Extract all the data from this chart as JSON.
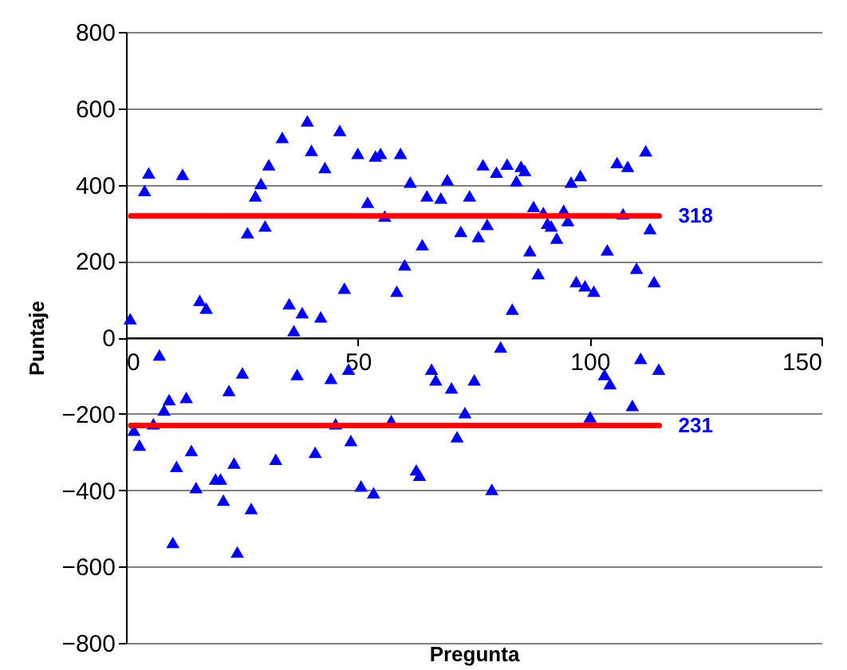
{
  "chart_data": {
    "type": "scatter",
    "xlabel": "Pregunta",
    "ylabel": "Puntaje",
    "xlim": [
      0,
      150
    ],
    "xticks": [
      0,
      50,
      100,
      150
    ],
    "ylim": [
      -800,
      800
    ],
    "yticks": [
      -800,
      -600,
      -400,
      -200,
      0,
      200,
      400,
      600,
      800
    ],
    "grid": "y",
    "annotations": [
      {
        "text": "318",
        "x": 115,
        "y": 318
      },
      {
        "text": "231",
        "x": 115,
        "y": -231
      }
    ],
    "series": [
      {
        "color": "#0000ff",
        "marker": "triangle",
        "x": [
          4.9,
          4.0,
          12.2,
          33.7,
          39.1,
          46.1,
          40.0,
          42.9,
          30.8,
          29.1,
          27.9,
          26.2,
          30.0,
          0.9,
          15.9,
          17.3,
          35.2,
          38.0,
          42.0,
          36.2,
          47.1,
          50.0,
          53.8,
          54.9,
          59.2,
          61.3,
          69.3,
          64.9,
          67.9,
          74.1,
          52.1,
          55.8,
          77.0,
          79.9,
          82.2,
          85.2,
          86.0,
          84.2,
          96.0,
          72.2,
          76.0,
          77.9,
          63.9,
          60.1,
          58.4,
          87.9,
          90.0,
          90.9,
          91.7,
          94.4,
          95.3,
          92.9,
          87.1,
          88.9,
          83.3,
          80.8,
          98.0,
          105.9,
          108.2,
          112.1,
          107.2,
          113.0,
          103.8,
          110.1,
          113.9,
          97.1,
          99.0,
          100.9,
          7.2,
          25.1,
          9.3,
          13.0,
          22.2,
          8.2,
          5.9,
          1.7,
          2.9,
          14.1,
          10.9,
          23.3,
          32.3,
          40.8,
          15.1,
          19.3,
          20.4,
          21.0,
          27.0,
          10.1,
          24.0,
          36.9,
          44.2,
          45.2,
          48.5,
          48.0,
          65.9,
          66.8,
          70.2,
          75.1,
          57.2,
          73.1,
          71.4,
          62.6,
          63.3,
          50.7,
          53.4,
          78.9,
          103.2,
          104.4,
          111.0,
          114.9,
          109.2,
          100.1
        ],
        "values": [
          431,
          385,
          427,
          524,
          567,
          542,
          490,
          445,
          452,
          403,
          371,
          274,
          292,
          49,
          97,
          77,
          88,
          65,
          54,
          18,
          129,
          482,
          475,
          482,
          482,
          407,
          413,
          371,
          365,
          371,
          354,
          318,
          452,
          433,
          454,
          448,
          437,
          410,
          407,
          278,
          264,
          296,
          243,
          190,
          121,
          343,
          327,
          299,
          292,
          333,
          306,
          260,
          227,
          167,
          74,
          -25,
          424,
          458,
          448,
          489,
          324,
          285,
          229,
          181,
          146,
          146,
          135,
          121,
          -46,
          -93,
          -163,
          -157,
          -139,
          -190,
          -226,
          -243,
          -282,
          -296,
          -338,
          -329,
          -319,
          -301,
          -393,
          -371,
          -371,
          -426,
          -448,
          -537,
          -562,
          -97,
          -107,
          -226,
          -270,
          -83,
          -83,
          -111,
          -132,
          -111,
          -218,
          -197,
          -260,
          -347,
          -361,
          -389,
          -407,
          -398,
          -97,
          -121,
          -55,
          -83,
          -178,
          -208
        ]
      },
      {
        "type": "line",
        "color": "#ff0000",
        "x": [
          1,
          115
        ],
        "values": [
          318,
          318
        ]
      },
      {
        "type": "line",
        "color": "#ff0000",
        "x": [
          1,
          115
        ],
        "values": [
          -231,
          -231
        ]
      }
    ]
  }
}
